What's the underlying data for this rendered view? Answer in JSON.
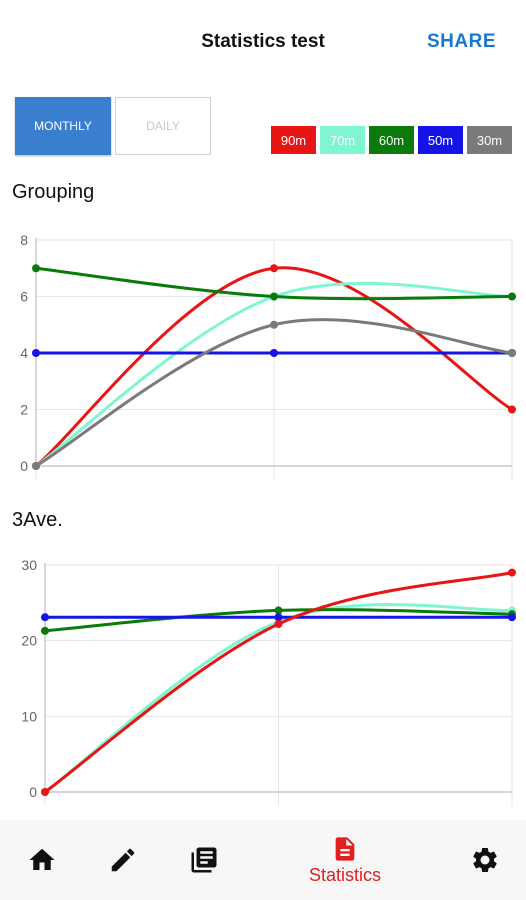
{
  "header": {
    "title": "Statistics test",
    "share_label": "SHARE"
  },
  "tabs": [
    {
      "label": "MONTHLY",
      "active": true
    },
    {
      "label": "DAILY",
      "active": false
    }
  ],
  "legend": [
    {
      "label": "90m",
      "color": "#e81515"
    },
    {
      "label": "70m",
      "color": "#7ff5d2"
    },
    {
      "label": "60m",
      "color": "#0a7a0a"
    },
    {
      "label": "50m",
      "color": "#1414e6"
    },
    {
      "label": "30m",
      "color": "#7a7a7a"
    }
  ],
  "charts": {
    "grouping_label": "Grouping",
    "average_label": "3Ave."
  },
  "chart_data": [
    {
      "type": "line",
      "title": "Grouping",
      "x": [
        1,
        2,
        3
      ],
      "ylim": [
        0,
        8
      ],
      "yticks": [
        "0",
        "2",
        "4",
        "6",
        "8"
      ],
      "grid": true,
      "series": [
        {
          "name": "90m",
          "color": "#e81515",
          "values": [
            0,
            7,
            2
          ]
        },
        {
          "name": "70m",
          "color": "#7ff5d2",
          "values": [
            0,
            6,
            6
          ]
        },
        {
          "name": "60m",
          "color": "#0a7a0a",
          "values": [
            7,
            6,
            6
          ]
        },
        {
          "name": "50m",
          "color": "#1414e6",
          "values": [
            4,
            4,
            4
          ]
        },
        {
          "name": "30m",
          "color": "#7a7a7a",
          "values": [
            0,
            5,
            4
          ]
        }
      ]
    },
    {
      "type": "line",
      "title": "3Ave.",
      "x": [
        1,
        2,
        3
      ],
      "ylim": [
        0,
        30
      ],
      "yticks": [
        "0",
        "10",
        "20",
        "30"
      ],
      "grid": true,
      "series": [
        {
          "name": "70m",
          "color": "#7ff5d2",
          "values": [
            0,
            22.5,
            24
          ]
        },
        {
          "name": "60m",
          "color": "#0a7a0a",
          "values": [
            21.3,
            24,
            23.5
          ]
        },
        {
          "name": "50m",
          "color": "#1414e6",
          "values": [
            23.1,
            23.1,
            23.1
          ]
        },
        {
          "name": "90m",
          "color": "#e81515",
          "values": [
            0,
            22.2,
            29
          ]
        }
      ]
    }
  ],
  "bottom_nav": [
    {
      "icon": "home-icon"
    },
    {
      "icon": "pencil-icon"
    },
    {
      "icon": "library-icon"
    },
    {
      "icon": "document-icon",
      "label": "Statistics",
      "active": true
    },
    {
      "icon": "gear-icon"
    }
  ]
}
